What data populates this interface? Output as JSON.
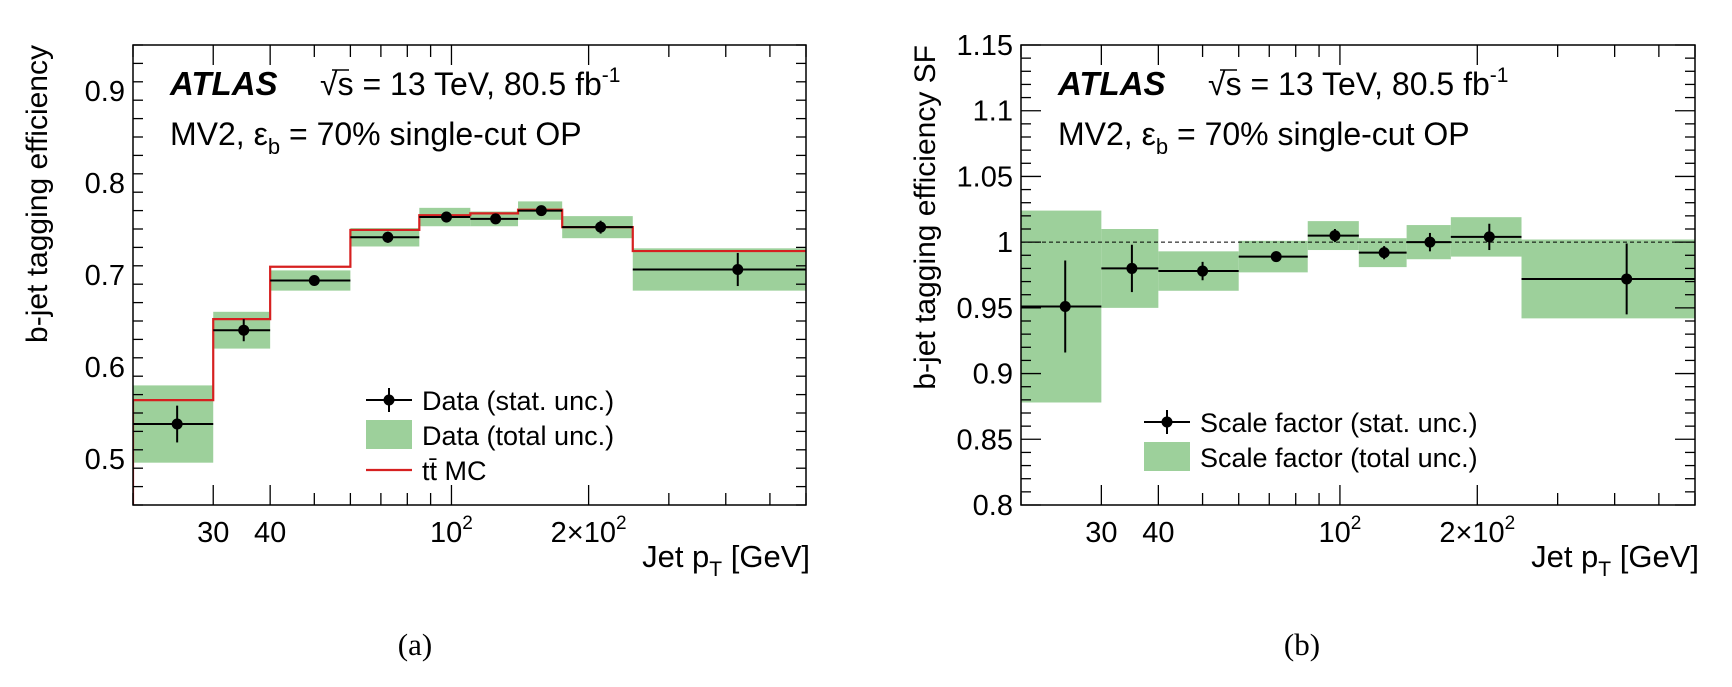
{
  "chart_data": [
    {
      "type": "line",
      "panel_label": "(a)",
      "title": "ATLAS",
      "subtitle": "√s = 13 TeV, 80.5 fb-1",
      "subtitle_parts": {
        "sqrt": "√s",
        "energy": " = 13 TeV, 80.5 fb",
        "sup": "-1"
      },
      "annotation_parts": {
        "prefix": "MV2,  ε",
        "sub": "b",
        "suffix": " = 70% single-cut OP"
      },
      "xlabel_parts": {
        "main": "Jet p",
        "sub": "T",
        "unit": " [GeV]"
      },
      "ylabel": "b-jet tagging efficiency",
      "x_scale": "log",
      "xlim": [
        20,
        600
      ],
      "ylim": [
        0.45,
        0.95
      ],
      "x_tick_labels": [
        {
          "value": 30,
          "label": "30"
        },
        {
          "value": 40,
          "label": "40"
        },
        {
          "value": 100,
          "label": "10",
          "sup": "2"
        },
        {
          "value": 200,
          "label": "2×10",
          "sup": "2"
        }
      ],
      "y_tick_labels": [
        "0.5",
        "0.6",
        "0.7",
        "0.8",
        "0.9"
      ],
      "y_ticks": [
        0.5,
        0.6,
        0.7,
        0.8,
        0.9
      ],
      "bin_edges": [
        20,
        30,
        40,
        60,
        85,
        110,
        140,
        175,
        250,
        600
      ],
      "series": [
        {
          "name": "Data (stat. unc.)",
          "x": [
            25,
            35,
            50,
            72.5,
            97.5,
            125,
            157.5,
            212.5,
            425
          ],
          "y": [
            0.538,
            0.64,
            0.694,
            0.741,
            0.763,
            0.761,
            0.77,
            0.752,
            0.706
          ],
          "stat_err": [
            0.02,
            0.012,
            0.005,
            0.006,
            0.006,
            0.005,
            0.005,
            0.007,
            0.018
          ]
        },
        {
          "name": "Data (total unc.)",
          "total_err": [
            0.042,
            0.02,
            0.011,
            0.01,
            0.01,
            0.008,
            0.01,
            0.012,
            0.023
          ]
        },
        {
          "name": "tt̄ MC",
          "y": [
            0.564,
            0.652,
            0.709,
            0.749,
            0.765,
            0.767,
            0.771,
            0.752,
            0.726
          ]
        }
      ],
      "legend_position": "bottom-right",
      "colors": {
        "band": "#9dd09b",
        "mc": "#d62020",
        "data": "#000000"
      }
    },
    {
      "type": "line",
      "panel_label": "(b)",
      "title": "ATLAS",
      "subtitle": "√s = 13 TeV, 80.5 fb-1",
      "subtitle_parts": {
        "sqrt": "√s",
        "energy": " = 13 TeV, 80.5 fb",
        "sup": "-1"
      },
      "annotation_parts": {
        "prefix": "MV2,  ε",
        "sub": "b",
        "suffix": " = 70% single-cut OP"
      },
      "xlabel_parts": {
        "main": "Jet p",
        "sub": "T",
        "unit": " [GeV]"
      },
      "ylabel": "b-jet tagging efficiency SF",
      "x_scale": "log",
      "xlim": [
        20,
        600
      ],
      "ylim": [
        0.8,
        1.15
      ],
      "x_tick_labels": [
        {
          "value": 30,
          "label": "30"
        },
        {
          "value": 40,
          "label": "40"
        },
        {
          "value": 100,
          "label": "10",
          "sup": "2"
        },
        {
          "value": 200,
          "label": "2×10",
          "sup": "2"
        }
      ],
      "y_tick_labels": [
        "0.8",
        "0.85",
        "0.9",
        "0.95",
        "1",
        "1.05",
        "1.1",
        "1.15"
      ],
      "y_ticks": [
        0.8,
        0.85,
        0.9,
        0.95,
        1.0,
        1.05,
        1.1,
        1.15
      ],
      "reference_line": 1.0,
      "bin_edges": [
        20,
        30,
        40,
        60,
        85,
        110,
        140,
        175,
        250,
        600
      ],
      "series": [
        {
          "name": "Scale factor (stat. unc.)",
          "x": [
            25,
            35,
            50,
            72.5,
            97.5,
            125,
            157.5,
            212.5,
            425
          ],
          "y": [
            0.951,
            0.98,
            0.978,
            0.989,
            1.005,
            0.992,
            1.0,
            1.004,
            0.972
          ],
          "stat_err": [
            0.035,
            0.018,
            0.007,
            0.004,
            0.005,
            0.005,
            0.007,
            0.01,
            0.027
          ]
        },
        {
          "name": "Scale factor (total unc.)",
          "total_err": [
            0.073,
            0.03,
            0.015,
            0.012,
            0.011,
            0.011,
            0.013,
            0.015,
            0.03
          ]
        }
      ],
      "legend_position": "bottom-right",
      "colors": {
        "band": "#9dd09b",
        "data": "#000000",
        "reference": "#000000"
      }
    }
  ]
}
